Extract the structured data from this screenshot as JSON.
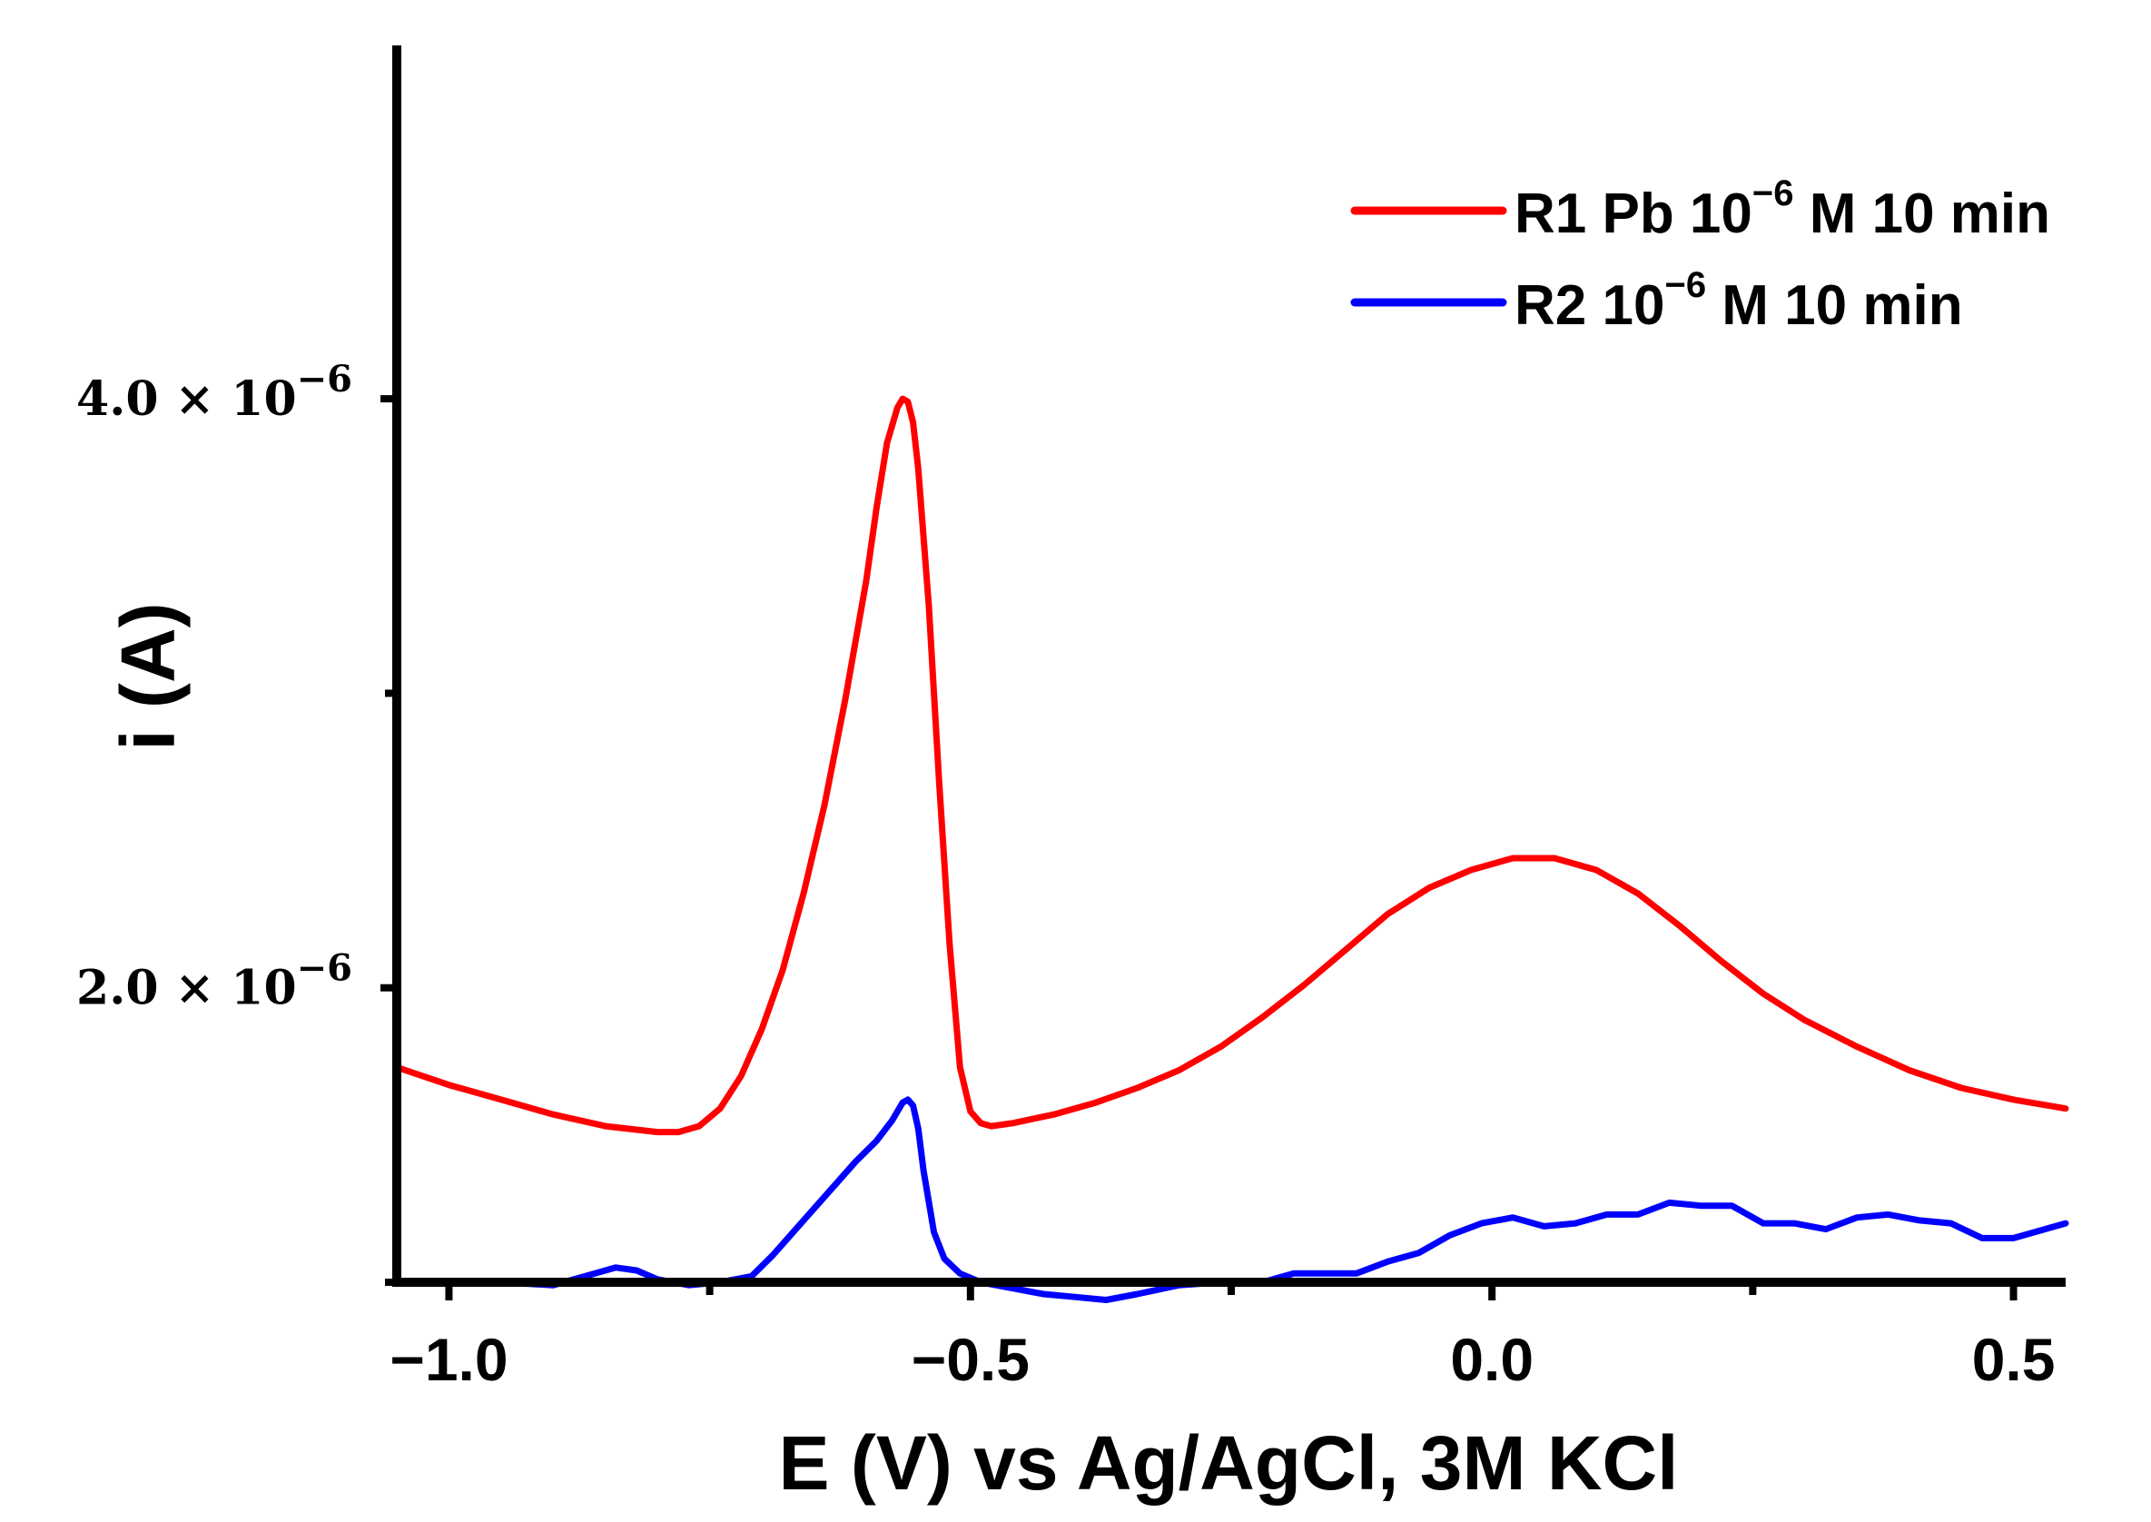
{
  "chart_data": {
    "type": "line",
    "xlabel": "E (V) vs Ag/AgCl, 3M KCl",
    "ylabel": "i (A)",
    "xlim": [
      -1.05,
      0.55
    ],
    "ylim": [
      1e-06,
      5.2e-06
    ],
    "x_ticks": [
      -1.0,
      -0.5,
      0.0,
      0.5
    ],
    "x_tick_labels": [
      "−1.0",
      "−0.5",
      "0.0",
      "0.5"
    ],
    "x_minor_ticks": [
      -0.75,
      -0.25,
      0.25
    ],
    "y_ticks": [
      {
        "value": 2e-06,
        "mantissa": "2.0",
        "times": "×",
        "base": "10",
        "exp": "−6"
      },
      {
        "value": 4e-06,
        "mantissa": "4.0",
        "times": "×",
        "base": "10",
        "exp": "−6"
      }
    ],
    "y_minor_ticks": [
      1e-06,
      3e-06
    ],
    "grid": false,
    "legend_position": "top-right",
    "series": [
      {
        "name": "R1 Pb 10",
        "name_exp": "−6",
        "name_suffix": " M 10 min",
        "color": "#ff0000",
        "x": [
          -1.05,
          -1.0,
          -0.95,
          -0.9,
          -0.85,
          -0.8,
          -0.78,
          -0.76,
          -0.74,
          -0.72,
          -0.7,
          -0.68,
          -0.66,
          -0.64,
          -0.62,
          -0.6,
          -0.59,
          -0.58,
          -0.57,
          -0.565,
          -0.56,
          -0.555,
          -0.55,
          -0.54,
          -0.53,
          -0.52,
          -0.51,
          -0.5,
          -0.49,
          -0.48,
          -0.46,
          -0.42,
          -0.38,
          -0.34,
          -0.3,
          -0.26,
          -0.22,
          -0.18,
          -0.14,
          -0.1,
          -0.06,
          -0.02,
          0.02,
          0.06,
          0.1,
          0.14,
          0.18,
          0.22,
          0.26,
          0.3,
          0.35,
          0.4,
          0.45,
          0.5,
          0.55
        ],
        "y": [
          1.73e-06,
          1.67e-06,
          1.62e-06,
          1.57e-06,
          1.53e-06,
          1.51e-06,
          1.51e-06,
          1.53e-06,
          1.59e-06,
          1.7e-06,
          1.86e-06,
          2.06e-06,
          2.32e-06,
          2.62e-06,
          2.98e-06,
          3.38e-06,
          3.63e-06,
          3.85e-06,
          3.97e-06,
          4e-06,
          3.99e-06,
          3.92e-06,
          3.76e-06,
          3.3e-06,
          2.7e-06,
          2.15e-06,
          1.73e-06,
          1.58e-06,
          1.54e-06,
          1.53e-06,
          1.54e-06,
          1.57e-06,
          1.61e-06,
          1.66e-06,
          1.72e-06,
          1.8e-06,
          1.9e-06,
          2.01e-06,
          2.13e-06,
          2.25e-06,
          2.34e-06,
          2.4e-06,
          2.44e-06,
          2.44e-06,
          2.4e-06,
          2.32e-06,
          2.21e-06,
          2.09e-06,
          1.98e-06,
          1.89e-06,
          1.8e-06,
          1.72e-06,
          1.66e-06,
          1.62e-06,
          1.59e-06
        ]
      },
      {
        "name": "R2 10",
        "name_exp": "−6",
        "name_suffix": " M 10 min",
        "color": "#0000ff",
        "x": [
          -1.05,
          -1.0,
          -0.95,
          -0.9,
          -0.87,
          -0.84,
          -0.82,
          -0.8,
          -0.77,
          -0.74,
          -0.71,
          -0.69,
          -0.67,
          -0.65,
          -0.63,
          -0.61,
          -0.59,
          -0.575,
          -0.565,
          -0.56,
          -0.555,
          -0.55,
          -0.545,
          -0.535,
          -0.525,
          -0.51,
          -0.49,
          -0.46,
          -0.43,
          -0.4,
          -0.37,
          -0.34,
          -0.3,
          -0.26,
          -0.22,
          -0.19,
          -0.16,
          -0.13,
          -0.1,
          -0.07,
          -0.04,
          -0.01,
          0.02,
          0.05,
          0.08,
          0.11,
          0.14,
          0.17,
          0.2,
          0.23,
          0.26,
          0.29,
          0.32,
          0.35,
          0.38,
          0.41,
          0.44,
          0.47,
          0.5,
          0.53,
          0.55
        ],
        "y": [
          1e-06,
          1e-06,
          1e-06,
          9.9e-07,
          1.02e-06,
          1.05e-06,
          1.04e-06,
          1.01e-06,
          9.9e-07,
          1e-06,
          1.02e-06,
          1.09e-06,
          1.17e-06,
          1.25e-06,
          1.33e-06,
          1.41e-06,
          1.48e-06,
          1.55e-06,
          1.61e-06,
          1.62e-06,
          1.6e-06,
          1.52e-06,
          1.38e-06,
          1.17e-06,
          1.08e-06,
          1.03e-06,
          1e-06,
          9.8e-07,
          9.6e-07,
          9.5e-07,
          9.4e-07,
          9.6e-07,
          9.9e-07,
          1e-06,
          1e-06,
          1.03e-06,
          1.03e-06,
          1.03e-06,
          1.07e-06,
          1.1e-06,
          1.16e-06,
          1.2e-06,
          1.22e-06,
          1.19e-06,
          1.2e-06,
          1.23e-06,
          1.23e-06,
          1.27e-06,
          1.26e-06,
          1.26e-06,
          1.2e-06,
          1.2e-06,
          1.18e-06,
          1.22e-06,
          1.23e-06,
          1.21e-06,
          1.2e-06,
          1.15e-06,
          1.15e-06,
          1.18e-06,
          1.2e-06
        ]
      }
    ]
  }
}
